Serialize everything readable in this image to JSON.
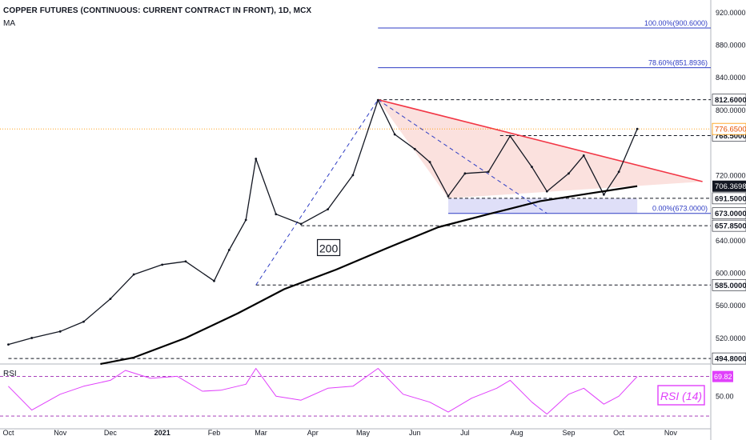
{
  "header": {
    "title": "COPPER FUTURES (CONTINUOUS: CURRENT CONTRACT IN FRONT), 1D, MCX",
    "indicator": "MA"
  },
  "rsi_panel": {
    "label": "RSI",
    "badge": "RSI (14)"
  },
  "chart_data": [
    {
      "type": "line",
      "panel": "price",
      "ylim": [
        490,
        935
      ],
      "y_ticks": [
        "920.0000",
        "880.0000",
        "840.0000",
        "800.0000",
        "720.0000",
        "640.0000",
        "600.0000",
        "560.0000",
        "520.0000"
      ],
      "x_ticks": [
        "Oct",
        "Nov",
        "Dec",
        "2021",
        "Feb",
        "Mar",
        "Apr",
        "May",
        "Jun",
        "Jul",
        "Aug",
        "Sep",
        "Oct",
        "Nov"
      ],
      "price_levels": [
        {
          "value": 812.6,
          "label": "812.6000"
        },
        {
          "value": 768.5,
          "label": "768.5000"
        },
        {
          "value": 691.5,
          "label": "691.5000"
        },
        {
          "value": 673.0,
          "label": "673.0000"
        },
        {
          "value": 657.85,
          "label": "657.8500"
        },
        {
          "value": 585.0,
          "label": "585.0000"
        },
        {
          "value": 494.8,
          "label": "494.8000"
        }
      ],
      "last_price": {
        "value": 776.65,
        "label": "776.6500"
      },
      "ma_value": {
        "value": 706.3698,
        "label": "706.3698"
      },
      "fib_levels": [
        {
          "pct": "100.00%",
          "value": 900.6,
          "label": "100.00%(900.6000)"
        },
        {
          "pct": "78.60%",
          "value": 851.8936,
          "label": "78.60%(851.8936)"
        },
        {
          "pct": "0.00%",
          "value": 673.0,
          "label": "0.00%(673.0000)"
        }
      ],
      "annotation": "200",
      "series": [
        {
          "role": "close",
          "x": [
            "2020-10-01",
            "2020-10-15",
            "2020-11-01",
            "2020-11-15",
            "2020-12-01",
            "2020-12-15",
            "2021-01-01",
            "2021-01-15",
            "2021-02-01",
            "2021-02-10",
            "2021-02-20",
            "2021-02-26",
            "2021-03-10",
            "2021-03-25",
            "2021-04-10",
            "2021-04-25",
            "2021-05-10",
            "2021-05-20",
            "2021-06-01",
            "2021-06-10",
            "2021-06-21",
            "2021-07-01",
            "2021-07-15",
            "2021-07-28",
            "2021-08-10",
            "2021-08-19",
            "2021-09-01",
            "2021-09-10",
            "2021-09-22",
            "2021-10-01",
            "2021-10-12"
          ],
          "values": [
            512,
            520,
            528,
            540,
            568,
            598,
            610,
            614,
            590,
            628,
            665,
            740,
            672,
            660,
            678,
            720,
            812,
            770,
            752,
            736,
            694,
            722,
            724,
            768,
            730,
            700,
            722,
            744,
            696,
            724,
            776.65
          ]
        },
        {
          "name": "200",
          "role": "ma200",
          "x": [
            "2020-11-25",
            "2020-12-15",
            "2021-01-15",
            "2021-02-15",
            "2021-03-15",
            "2021-04-15",
            "2021-05-15",
            "2021-06-15",
            "2021-07-15",
            "2021-08-15",
            "2021-09-15",
            "2021-10-12"
          ],
          "values": [
            488,
            496,
            520,
            550,
            580,
            604,
            630,
            656,
            672,
            688,
            698,
            706.37
          ]
        }
      ],
      "trendline": {
        "x": [
          "2021-05-10",
          "2021-11-20"
        ],
        "values": [
          812.6,
          712
        ]
      },
      "dashed_lines": [
        {
          "x": [
            "2021-02-26",
            "2021-05-10"
          ],
          "values": [
            585,
            812.6
          ]
        },
        {
          "x": [
            "2021-05-10",
            "2021-08-19"
          ],
          "values": [
            812.6,
            673
          ]
        }
      ],
      "shaded_zones": [
        {
          "kind": "triangle",
          "x": [
            "2021-05-10",
            "2021-11-20",
            "2021-06-21"
          ],
          "values": [
            812.6,
            712,
            691.5
          ]
        },
        {
          "kind": "band",
          "x": [
            "2021-06-21",
            "2021-10-12"
          ],
          "values": [
            673,
            691.5
          ]
        }
      ]
    },
    {
      "type": "line",
      "panel": "rsi",
      "ylim": [
        22,
        80
      ],
      "y_ticks": [
        "50.00"
      ],
      "current": {
        "value": 69.82,
        "label": "69.82"
      },
      "bands": [
        70,
        30
      ],
      "series": [
        {
          "name": "RSI (14)",
          "x": [
            "2020-10-01",
            "2020-10-15",
            "2020-11-01",
            "2020-11-15",
            "2020-12-01",
            "2020-12-10",
            "2020-12-25",
            "2021-01-10",
            "2021-01-25",
            "2021-02-05",
            "2021-02-20",
            "2021-02-26",
            "2021-03-10",
            "2021-03-25",
            "2021-04-10",
            "2021-04-25",
            "2021-05-10",
            "2021-05-25",
            "2021-06-10",
            "2021-06-21",
            "2021-07-05",
            "2021-07-20",
            "2021-07-28",
            "2021-08-10",
            "2021-08-19",
            "2021-09-01",
            "2021-09-10",
            "2021-09-22",
            "2021-10-01",
            "2021-10-12"
          ],
          "values": [
            60,
            36,
            52,
            60,
            66,
            76,
            68,
            70,
            55,
            56,
            62,
            78,
            50,
            46,
            58,
            60,
            78,
            52,
            44,
            34,
            48,
            58,
            66,
            44,
            32,
            52,
            58,
            42,
            50,
            69.82
          ]
        }
      ]
    }
  ],
  "colors": {
    "price_line": "#131722",
    "ma_line": "#000000",
    "trendline": "#f23645",
    "triangle_fill": "#f8c9c2",
    "band_fill": "#c9c9f3",
    "fib": "#2f3dc4",
    "rsi_line": "#e040fb",
    "rsi_band": "#9c27b0",
    "last_price_line": "#ff9800",
    "axis_text": "#131722"
  }
}
